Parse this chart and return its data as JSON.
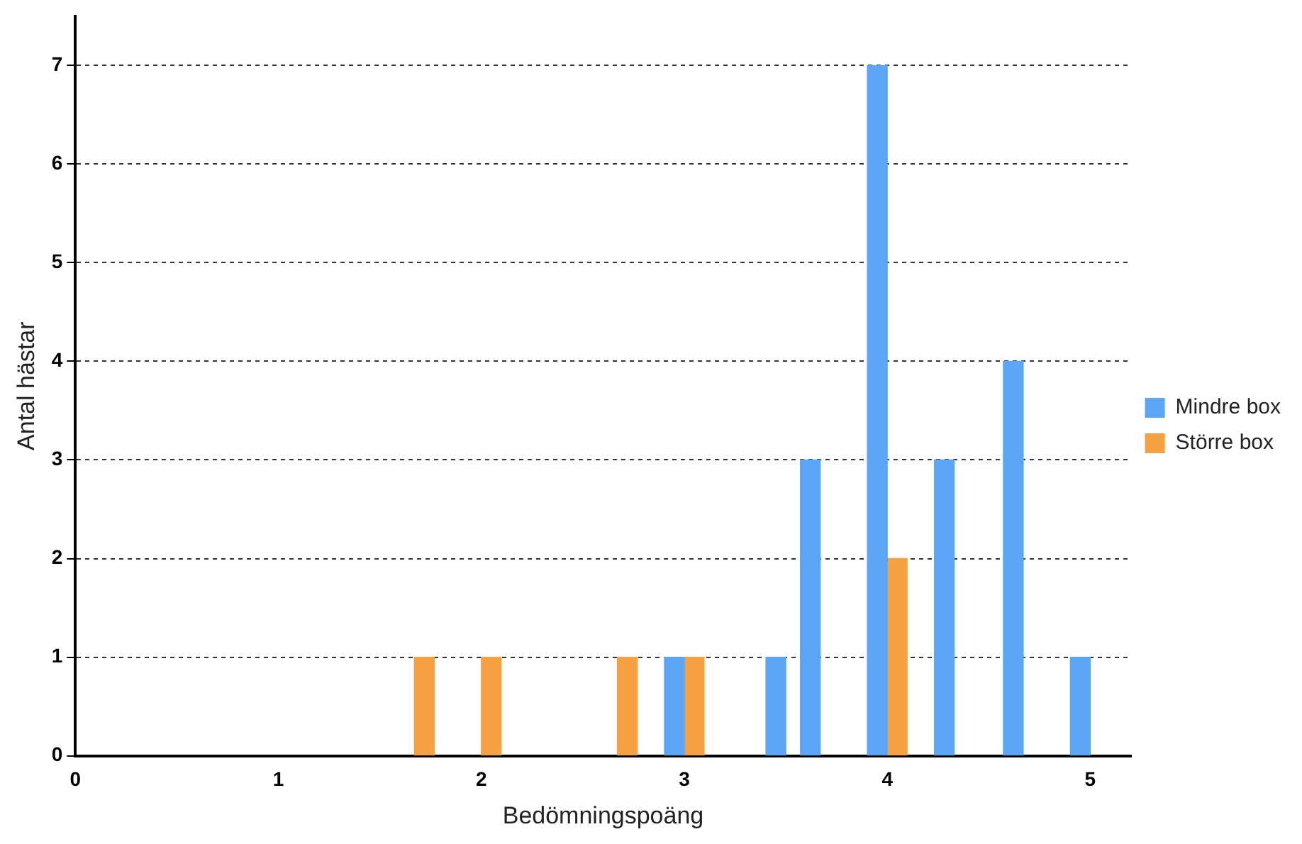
{
  "chart_data": {
    "type": "bar",
    "xlabel": "Bedömningspoäng",
    "ylabel": "Antal hästar",
    "xlim": [
      0,
      5.2
    ],
    "xticks": [
      0,
      1,
      2,
      3,
      4,
      5
    ],
    "ylim": [
      0,
      7.5
    ],
    "yticks": [
      0,
      1,
      2,
      3,
      4,
      5,
      6,
      7
    ],
    "grid": "y",
    "legend": "right",
    "series": [
      {
        "name": "Mindre box",
        "color": "#5aa5f5",
        "x": [
          3,
          3.5,
          3.67,
          4,
          4.33,
          4.67,
          5
        ],
        "values": [
          1,
          1,
          3,
          7,
          3,
          4,
          1
        ]
      },
      {
        "name": "Större box",
        "color": "#f5a142",
        "x": [
          1.67,
          2,
          2.67,
          3,
          4
        ],
        "values": [
          1,
          1,
          1,
          1,
          2
        ]
      }
    ]
  }
}
